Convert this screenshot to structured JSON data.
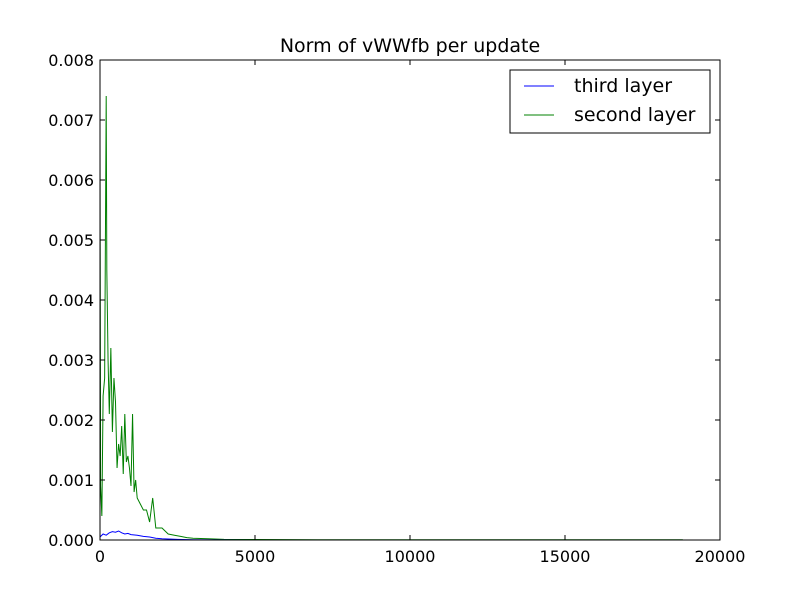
{
  "chart_data": {
    "type": "line",
    "title": "Norm of vWWfb per update",
    "xlabel": "",
    "ylabel": "",
    "xlim": [
      0,
      20000
    ],
    "ylim": [
      0,
      0.008
    ],
    "x_ticks": [
      0,
      5000,
      10000,
      15000,
      20000
    ],
    "x_tick_labels": [
      "0",
      "5000",
      "10000",
      "15000",
      "20000"
    ],
    "y_ticks": [
      0,
      0.001,
      0.002,
      0.003,
      0.004,
      0.005,
      0.006,
      0.007,
      0.008
    ],
    "y_tick_labels": [
      "0.000",
      "0.001",
      "0.002",
      "0.003",
      "0.004",
      "0.005",
      "0.006",
      "0.007",
      "0.008"
    ],
    "grid": false,
    "legend_position": "top-right",
    "series": [
      {
        "name": "third layer",
        "color": "#0000ff",
        "x": [
          0,
          100,
          200,
          300,
          400,
          500,
          600,
          700,
          800,
          900,
          1000,
          1200,
          1400,
          1600,
          1800,
          2000,
          2500,
          3000,
          4000,
          5000,
          10000,
          15000,
          18800
        ],
        "y": [
          5e-05,
          0.0001,
          8e-05,
          0.00012,
          0.00014,
          0.00013,
          0.00015,
          0.00012,
          0.0001,
          0.00011,
          9e-05,
          8e-05,
          6e-05,
          5e-05,
          3e-05,
          2e-05,
          1e-05,
          5e-06,
          2e-06,
          1e-06,
          5e-07,
          5e-07,
          5e-07
        ]
      },
      {
        "name": "second layer",
        "color": "#008000",
        "x": [
          0,
          20,
          60,
          100,
          150,
          200,
          220,
          260,
          300,
          350,
          400,
          450,
          500,
          550,
          600,
          650,
          700,
          750,
          800,
          850,
          900,
          950,
          1000,
          1050,
          1100,
          1150,
          1200,
          1300,
          1400,
          1500,
          1600,
          1700,
          1800,
          1900,
          2000,
          2200,
          2400,
          2600,
          2800,
          3000,
          3500,
          4000,
          5000,
          7000,
          10000,
          15000,
          18800
        ],
        "y": [
          0.0066,
          0.0009,
          0.0004,
          0.0024,
          0.0027,
          0.0074,
          0.0045,
          0.003,
          0.0021,
          0.0032,
          0.0018,
          0.0027,
          0.0023,
          0.0012,
          0.0016,
          0.0014,
          0.0019,
          0.0011,
          0.0021,
          0.0013,
          0.0014,
          0.0012,
          0.0009,
          0.0021,
          0.0008,
          0.001,
          0.0007,
          0.0006,
          0.0005,
          0.0005,
          0.0003,
          0.0007,
          0.0002,
          0.0002,
          0.0002,
          0.0001,
          8e-05,
          6e-05,
          4e-05,
          3e-05,
          2e-05,
          1e-05,
          8e-06,
          5e-06,
          5e-06,
          5e-06,
          5e-06
        ]
      }
    ]
  }
}
